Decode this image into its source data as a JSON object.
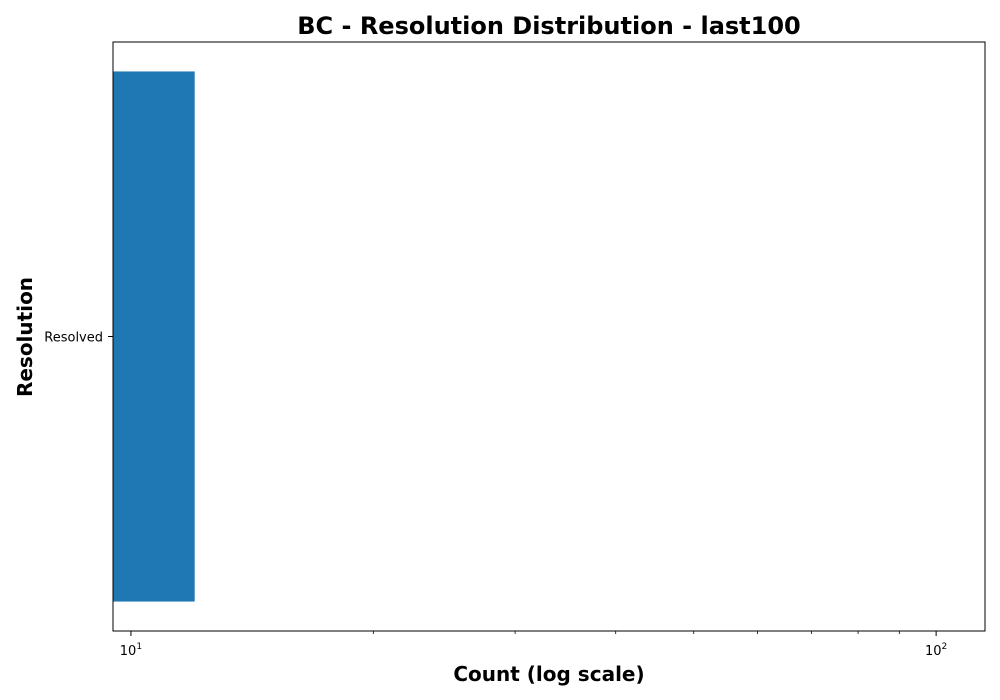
{
  "chart_data": {
    "type": "bar",
    "orientation": "horizontal",
    "title": "BC - Resolution Distribution - last100",
    "xlabel": "Count (log scale)",
    "ylabel": "Resolution",
    "x_scale": "log",
    "xlim": [
      9.5,
      115
    ],
    "x_ticks": [
      {
        "value": 10,
        "base": "10",
        "exponent": "1"
      },
      {
        "value": 100,
        "base": "10",
        "exponent": "2"
      }
    ],
    "categories": [
      "Resolved"
    ],
    "values": [
      12
    ],
    "colors": {
      "bar": "#1f77b4",
      "axes": "#000000",
      "background": "#ffffff"
    },
    "grid": false,
    "legend": false
  }
}
